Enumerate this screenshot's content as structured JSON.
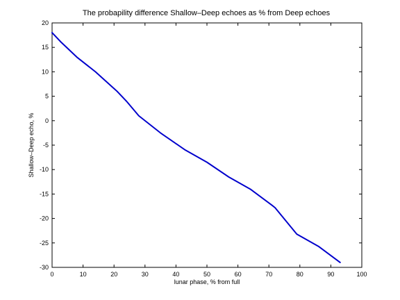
{
  "chart_data": {
    "type": "line",
    "title": "The probapility difference Shallow–Deep echoes as % from Deep echoes",
    "xlabel": "lunar phase, % from full",
    "ylabel": "Shallow–Deep echo, %",
    "xlim": [
      0,
      100
    ],
    "ylim": [
      -30,
      20
    ],
    "xticks": [
      0,
      10,
      20,
      30,
      40,
      50,
      60,
      70,
      80,
      90,
      100
    ],
    "yticks": [
      20,
      15,
      10,
      5,
      0,
      -5,
      -10,
      -15,
      -20,
      -25,
      -30
    ],
    "grid": false,
    "legend": "none",
    "series": [
      {
        "color": "#0000cc",
        "x": [
          0,
          3,
          8,
          14,
          21,
          24,
          28,
          35,
          43,
          50,
          57,
          64,
          71,
          72,
          79,
          86,
          93
        ],
        "y": [
          18,
          16,
          13,
          10,
          6,
          4,
          1,
          -2.5,
          -6,
          -8.5,
          -11.5,
          -14,
          -17.3,
          -17.8,
          -23.2,
          -25.7,
          -29
        ]
      }
    ]
  }
}
